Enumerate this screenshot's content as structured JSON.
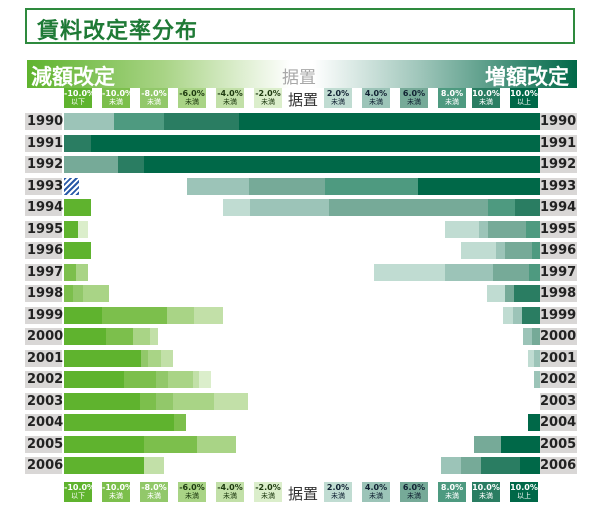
{
  "title": "賃料改定率分布",
  "header": {
    "decrease": "減額改定",
    "flat": "据置",
    "increase": "増額改定"
  },
  "chart_data": {
    "type": "bar",
    "stacked": "100% diverging horizontal",
    "title": "賃料改定率分布",
    "unit": "percent of cases",
    "flat_label": "据置",
    "decrease_categories": [
      {
        "top": "-10.0%",
        "bottom": "以下",
        "color": "#5fb32e",
        "text": "#ffffff"
      },
      {
        "top": "-10.0%",
        "bottom": "未満",
        "color": "#7cbf4c",
        "text": "#ffffff"
      },
      {
        "top": "-8.0%",
        "bottom": "未満",
        "color": "#92c86a",
        "text": "#ffffff"
      },
      {
        "top": "-6.0%",
        "bottom": "未満",
        "color": "#a9d486",
        "text": "#1e3a10"
      },
      {
        "top": "-4.0%",
        "bottom": "未満",
        "color": "#c2e0a8",
        "text": "#1e3a10"
      },
      {
        "top": "-2.0%",
        "bottom": "未満",
        "color": "#dbeecb",
        "text": "#1e3a10"
      }
    ],
    "increase_categories": [
      {
        "top": "2.0%",
        "bottom": "未満",
        "color": "#c0dcd2",
        "text": "#123"
      },
      {
        "top": "4.0%",
        "bottom": "未満",
        "color": "#9cc4b8",
        "text": "#123"
      },
      {
        "top": "6.0%",
        "bottom": "未満",
        "color": "#76aa98",
        "text": "#123"
      },
      {
        "top": "8.0%",
        "bottom": "未満",
        "color": "#4e9a80",
        "text": "#ffffff"
      },
      {
        "top": "10.0%",
        "bottom": "未満",
        "color": "#2a7d62",
        "text": "#ffffff"
      },
      {
        "top": "10.0%",
        "bottom": "以上",
        "color": "#006848",
        "text": "#ffffff"
      }
    ],
    "rows": [
      {
        "year": "1990",
        "decrease": [],
        "increase": [
          [
            1,
            10.5
          ],
          [
            3,
            10.5
          ],
          [
            4,
            15.6
          ],
          [
            5,
            63.3
          ]
        ]
      },
      {
        "year": "1991",
        "decrease": [],
        "increase": [
          [
            4,
            5.6
          ],
          [
            5,
            94.4
          ]
        ]
      },
      {
        "year": "1992",
        "decrease": [],
        "increase": [
          [
            2,
            11.2
          ],
          [
            4,
            5.5
          ],
          [
            5,
            83.2
          ]
        ]
      },
      {
        "year": "1993",
        "decrease": [
          [
            "hatched",
            3.1
          ]
        ],
        "increase": [
          [
            1,
            12.9
          ],
          [
            2,
            16.1
          ],
          [
            3,
            19.4
          ],
          [
            5,
            25.7
          ]
        ]
      },
      {
        "year": "1994",
        "decrease": [
          [
            0,
            5.6
          ]
        ],
        "increase": [
          [
            0,
            5.6
          ],
          [
            1,
            16.7
          ],
          [
            2,
            33.4
          ],
          [
            3,
            5.6
          ],
          [
            4,
            5.3
          ]
        ]
      },
      {
        "year": "1995",
        "decrease": [
          [
            0,
            3.0
          ],
          [
            5,
            2.0
          ]
        ],
        "increase": [
          [
            0,
            7.0
          ],
          [
            1,
            2.0
          ],
          [
            2,
            8.0
          ],
          [
            3,
            2.9
          ]
        ]
      },
      {
        "year": "1996",
        "decrease": [
          [
            0,
            5.6
          ]
        ],
        "increase": [
          [
            0,
            7.3
          ],
          [
            1,
            2.0
          ],
          [
            2,
            5.6
          ],
          [
            3,
            1.7
          ]
        ]
      },
      {
        "year": "1997",
        "decrease": [
          [
            1,
            2.5
          ],
          [
            3,
            2.5
          ]
        ],
        "increase": [
          [
            0,
            15.0
          ],
          [
            1,
            10.0
          ],
          [
            2,
            7.5
          ],
          [
            3,
            2.4
          ]
        ]
      },
      {
        "year": "1998",
        "decrease": [
          [
            1,
            1.9
          ],
          [
            2,
            2.0
          ],
          [
            3,
            5.5
          ]
        ],
        "increase": [
          [
            0,
            3.8
          ],
          [
            2,
            1.9
          ],
          [
            4,
            5.5
          ]
        ]
      },
      {
        "year": "1999",
        "decrease": [
          [
            0,
            7.9
          ],
          [
            1,
            13.7
          ],
          [
            3,
            5.8
          ],
          [
            4,
            6.0
          ]
        ],
        "increase": [
          [
            0,
            2.0
          ],
          [
            1,
            2.0
          ],
          [
            4,
            3.7
          ]
        ]
      },
      {
        "year": "2000",
        "decrease": [
          [
            0,
            8.9
          ],
          [
            1,
            5.5
          ],
          [
            3,
            3.6
          ],
          [
            4,
            1.8
          ]
        ],
        "increase": [
          [
            1,
            1.9
          ],
          [
            2,
            1.6
          ]
        ]
      },
      {
        "year": "2001",
        "decrease": [
          [
            0,
            16.1
          ],
          [
            2,
            1.6
          ],
          [
            3,
            2.6
          ],
          [
            4,
            2.7
          ]
        ],
        "increase": [
          [
            0,
            1.4
          ],
          [
            1,
            1.2
          ]
        ]
      },
      {
        "year": "2002",
        "decrease": [
          [
            0,
            12.7
          ],
          [
            1,
            6.6
          ],
          [
            2,
            2.5
          ],
          [
            3,
            5.3
          ],
          [
            4,
            1.2
          ],
          [
            5,
            2.6
          ]
        ],
        "increase": [
          [
            1,
            1.2
          ]
        ]
      },
      {
        "year": "2003",
        "decrease": [
          [
            0,
            15.9
          ],
          [
            1,
            3.5
          ],
          [
            2,
            3.4
          ],
          [
            3,
            8.8
          ],
          [
            4,
            7.0
          ]
        ],
        "increase": []
      },
      {
        "year": "2004",
        "decrease": [
          [
            0,
            23.1
          ],
          [
            1,
            2.6
          ]
        ],
        "increase": [
          [
            5,
            2.5
          ]
        ]
      },
      {
        "year": "2005",
        "decrease": [
          [
            0,
            16.8
          ],
          [
            1,
            11.2
          ],
          [
            3,
            8.2
          ]
        ],
        "increase": [
          [
            2,
            5.6
          ],
          [
            5,
            8.2
          ]
        ]
      },
      {
        "year": "2006",
        "decrease": [
          [
            0,
            16.8
          ],
          [
            4,
            4.2
          ]
        ],
        "increase": [
          [
            1,
            4.2
          ],
          [
            2,
            4.2
          ],
          [
            4,
            8.3
          ],
          [
            5,
            4.1
          ]
        ]
      }
    ]
  }
}
